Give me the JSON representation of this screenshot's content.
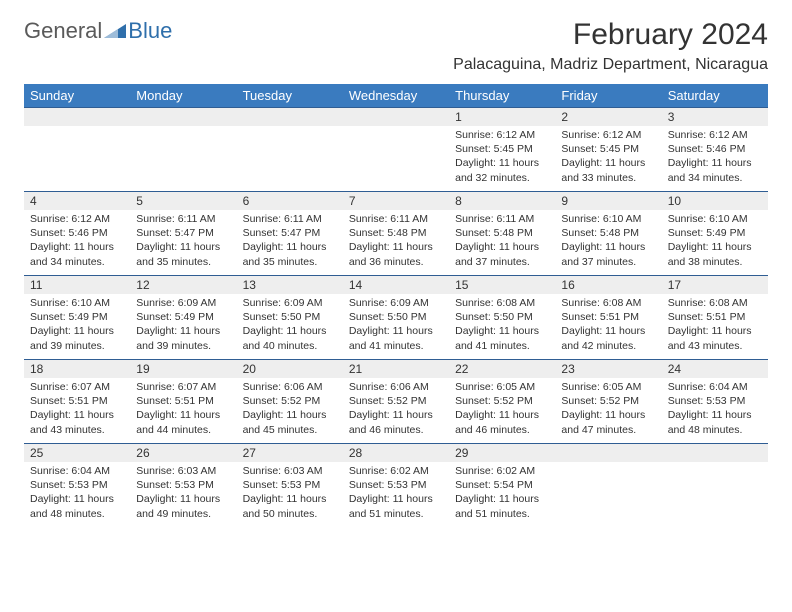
{
  "brand": {
    "word1": "General",
    "word2": "Blue"
  },
  "title": "February 2024",
  "location": "Palacaguina, Madriz Department, Nicaragua",
  "colors": {
    "header_bg": "#3a7bbf",
    "header_text": "#ffffff",
    "daynum_bg": "#eeeeee",
    "row_border": "#2f5d93",
    "text": "#333333",
    "brand_gray": "#5a5a5a",
    "brand_blue": "#2f6fab",
    "page_bg": "#ffffff"
  },
  "day_headers": [
    "Sunday",
    "Monday",
    "Tuesday",
    "Wednesday",
    "Thursday",
    "Friday",
    "Saturday"
  ],
  "weeks": [
    [
      null,
      null,
      null,
      null,
      {
        "n": "1",
        "sunrise": "6:12 AM",
        "sunset": "5:45 PM",
        "daylight": "11 hours and 32 minutes."
      },
      {
        "n": "2",
        "sunrise": "6:12 AM",
        "sunset": "5:45 PM",
        "daylight": "11 hours and 33 minutes."
      },
      {
        "n": "3",
        "sunrise": "6:12 AM",
        "sunset": "5:46 PM",
        "daylight": "11 hours and 34 minutes."
      }
    ],
    [
      {
        "n": "4",
        "sunrise": "6:12 AM",
        "sunset": "5:46 PM",
        "daylight": "11 hours and 34 minutes."
      },
      {
        "n": "5",
        "sunrise": "6:11 AM",
        "sunset": "5:47 PM",
        "daylight": "11 hours and 35 minutes."
      },
      {
        "n": "6",
        "sunrise": "6:11 AM",
        "sunset": "5:47 PM",
        "daylight": "11 hours and 35 minutes."
      },
      {
        "n": "7",
        "sunrise": "6:11 AM",
        "sunset": "5:48 PM",
        "daylight": "11 hours and 36 minutes."
      },
      {
        "n": "8",
        "sunrise": "6:11 AM",
        "sunset": "5:48 PM",
        "daylight": "11 hours and 37 minutes."
      },
      {
        "n": "9",
        "sunrise": "6:10 AM",
        "sunset": "5:48 PM",
        "daylight": "11 hours and 37 minutes."
      },
      {
        "n": "10",
        "sunrise": "6:10 AM",
        "sunset": "5:49 PM",
        "daylight": "11 hours and 38 minutes."
      }
    ],
    [
      {
        "n": "11",
        "sunrise": "6:10 AM",
        "sunset": "5:49 PM",
        "daylight": "11 hours and 39 minutes."
      },
      {
        "n": "12",
        "sunrise": "6:09 AM",
        "sunset": "5:49 PM",
        "daylight": "11 hours and 39 minutes."
      },
      {
        "n": "13",
        "sunrise": "6:09 AM",
        "sunset": "5:50 PM",
        "daylight": "11 hours and 40 minutes."
      },
      {
        "n": "14",
        "sunrise": "6:09 AM",
        "sunset": "5:50 PM",
        "daylight": "11 hours and 41 minutes."
      },
      {
        "n": "15",
        "sunrise": "6:08 AM",
        "sunset": "5:50 PM",
        "daylight": "11 hours and 41 minutes."
      },
      {
        "n": "16",
        "sunrise": "6:08 AM",
        "sunset": "5:51 PM",
        "daylight": "11 hours and 42 minutes."
      },
      {
        "n": "17",
        "sunrise": "6:08 AM",
        "sunset": "5:51 PM",
        "daylight": "11 hours and 43 minutes."
      }
    ],
    [
      {
        "n": "18",
        "sunrise": "6:07 AM",
        "sunset": "5:51 PM",
        "daylight": "11 hours and 43 minutes."
      },
      {
        "n": "19",
        "sunrise": "6:07 AM",
        "sunset": "5:51 PM",
        "daylight": "11 hours and 44 minutes."
      },
      {
        "n": "20",
        "sunrise": "6:06 AM",
        "sunset": "5:52 PM",
        "daylight": "11 hours and 45 minutes."
      },
      {
        "n": "21",
        "sunrise": "6:06 AM",
        "sunset": "5:52 PM",
        "daylight": "11 hours and 46 minutes."
      },
      {
        "n": "22",
        "sunrise": "6:05 AM",
        "sunset": "5:52 PM",
        "daylight": "11 hours and 46 minutes."
      },
      {
        "n": "23",
        "sunrise": "6:05 AM",
        "sunset": "5:52 PM",
        "daylight": "11 hours and 47 minutes."
      },
      {
        "n": "24",
        "sunrise": "6:04 AM",
        "sunset": "5:53 PM",
        "daylight": "11 hours and 48 minutes."
      }
    ],
    [
      {
        "n": "25",
        "sunrise": "6:04 AM",
        "sunset": "5:53 PM",
        "daylight": "11 hours and 48 minutes."
      },
      {
        "n": "26",
        "sunrise": "6:03 AM",
        "sunset": "5:53 PM",
        "daylight": "11 hours and 49 minutes."
      },
      {
        "n": "27",
        "sunrise": "6:03 AM",
        "sunset": "5:53 PM",
        "daylight": "11 hours and 50 minutes."
      },
      {
        "n": "28",
        "sunrise": "6:02 AM",
        "sunset": "5:53 PM",
        "daylight": "11 hours and 51 minutes."
      },
      {
        "n": "29",
        "sunrise": "6:02 AM",
        "sunset": "5:54 PM",
        "daylight": "11 hours and 51 minutes."
      },
      null,
      null
    ]
  ],
  "labels": {
    "sunrise": "Sunrise:",
    "sunset": "Sunset:",
    "daylight": "Daylight:"
  }
}
